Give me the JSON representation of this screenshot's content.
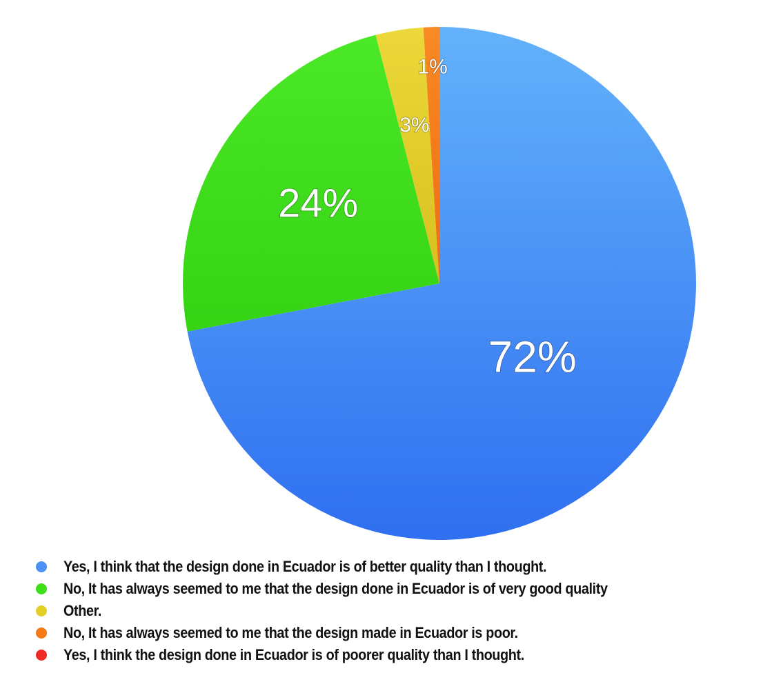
{
  "chart_data": {
    "type": "pie",
    "slices": [
      {
        "label": "Yes, I think that the design done in Ecuador is of better quality than I thought.",
        "value": 72,
        "display": "72%",
        "color": "#4a90f5"
      },
      {
        "label": "No, It has always seemed to me that the design done in Ecuador is of very good quality",
        "value": 24,
        "display": "24%",
        "color": "#3fe01a"
      },
      {
        "label": "Other.",
        "value": 3,
        "display": "3%",
        "color": "#e3cf2a"
      },
      {
        "label": "No, It has always seemed to me that the design made in Ecuador is poor.",
        "value": 1,
        "display": "1%",
        "color": "#f47a18"
      },
      {
        "label": "Yes, I think the design done in Ecuador is of poorer quality than I thought.",
        "value": 0,
        "display": "",
        "color": "#ee2a24"
      }
    ],
    "start_angle_deg": 0,
    "direction": "clockwise",
    "legend_position": "bottom-left"
  }
}
